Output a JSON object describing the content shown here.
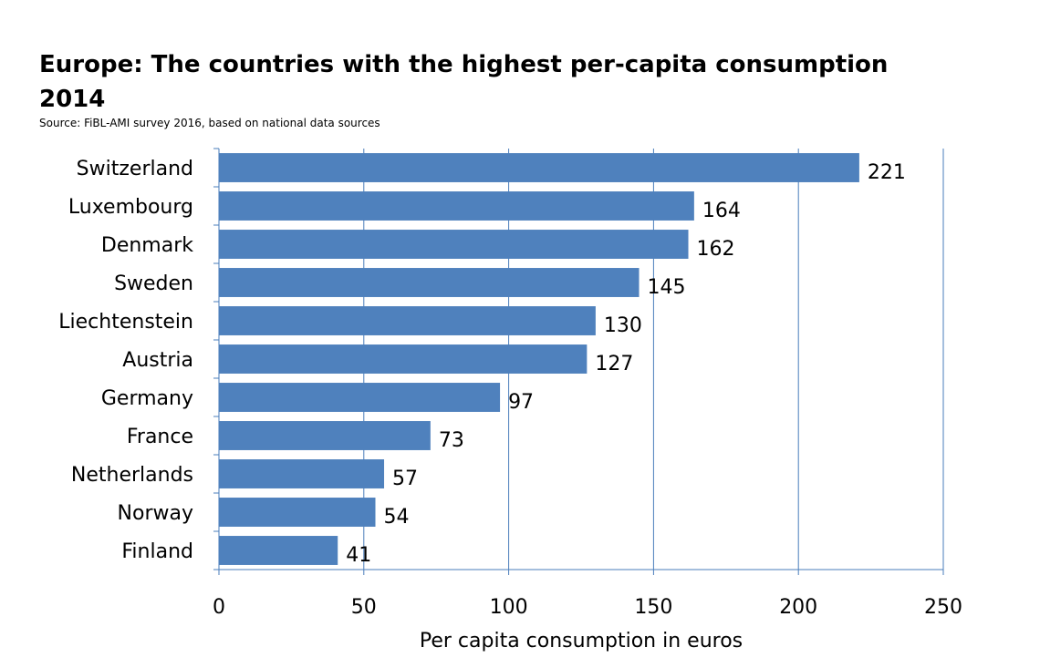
{
  "chart_data": {
    "type": "bar",
    "orientation": "horizontal",
    "title": "Europe: The countries with the highest per-capita consumption",
    "title_line2": "2014",
    "subtitle": "Source: FiBL-AMI survey 2016, based on national data sources",
    "categories": [
      "Switzerland",
      "Luxembourg",
      "Denmark",
      "Sweden",
      "Liechtenstein",
      "Austria",
      "Germany",
      "France",
      "Netherlands",
      "Norway",
      "Finland"
    ],
    "values": [
      221,
      164,
      162,
      145,
      130,
      127,
      97,
      73,
      57,
      54,
      41
    ],
    "xlabel": "Per capita consumption in euros",
    "ylabel": "",
    "xlim": [
      0,
      250
    ],
    "xticks": [
      0,
      50,
      100,
      150,
      200,
      250
    ],
    "grid": "vertical",
    "legend": "none",
    "bar_color": "#4f81bd",
    "grid_color": "#4a7ebb"
  }
}
